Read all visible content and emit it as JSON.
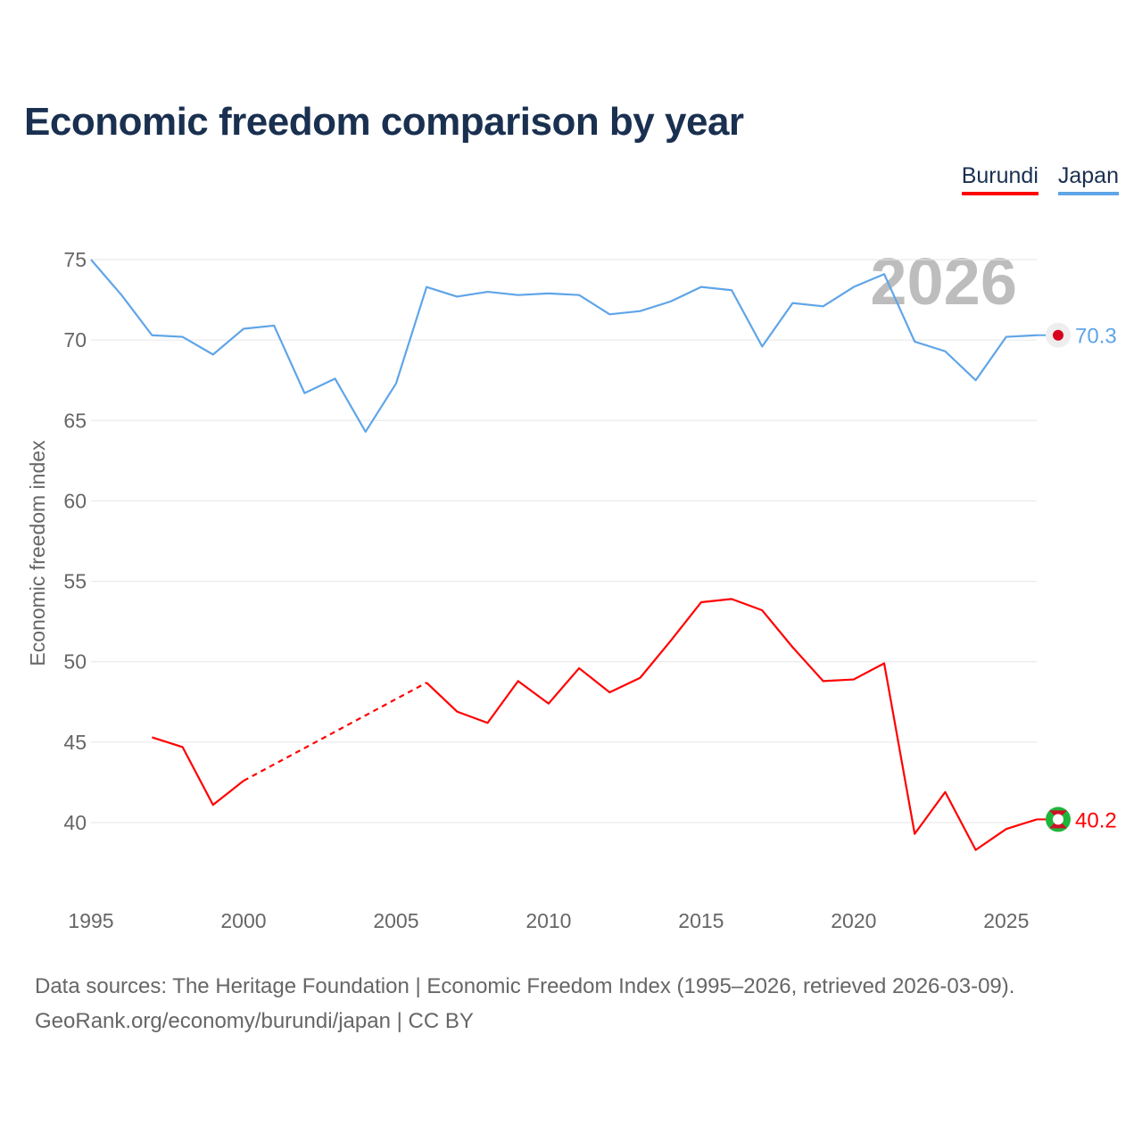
{
  "chart_data": {
    "type": "line",
    "title": "Economic freedom comparison by year",
    "xlabel": "",
    "ylabel": "Economic freedom index",
    "watermark_year": "2026",
    "x": [
      1995,
      1996,
      1997,
      1998,
      1999,
      2000,
      2001,
      2002,
      2003,
      2004,
      2005,
      2006,
      2007,
      2008,
      2009,
      2010,
      2011,
      2012,
      2013,
      2014,
      2015,
      2016,
      2017,
      2018,
      2019,
      2020,
      2021,
      2022,
      2023,
      2024,
      2025,
      2026
    ],
    "xlim": [
      1995,
      2026
    ],
    "ylim": [
      35,
      76
    ],
    "x_ticks": [
      "1995",
      "2000",
      "2005",
      "2010",
      "2015",
      "2020",
      "2025"
    ],
    "y_ticks": [
      "40",
      "45",
      "50",
      "55",
      "60",
      "65",
      "70",
      "75"
    ],
    "grid": true,
    "legend_position": "top-right",
    "series": [
      {
        "name": "Burundi",
        "color": "#ff0000",
        "end_label": "40.2",
        "values": [
          null,
          null,
          45.3,
          44.7,
          41.1,
          42.6,
          null,
          null,
          null,
          null,
          null,
          48.7,
          46.9,
          46.2,
          48.8,
          47.4,
          49.6,
          48.1,
          49.0,
          51.3,
          53.7,
          53.9,
          53.2,
          50.9,
          48.8,
          48.9,
          49.9,
          39.3,
          41.9,
          38.3,
          39.6,
          40.2
        ]
      },
      {
        "name": "Japan",
        "color": "#5fa5e8",
        "end_label": "70.3",
        "values": [
          75.0,
          72.8,
          70.3,
          70.2,
          69.1,
          70.7,
          70.9,
          66.7,
          67.6,
          64.3,
          67.3,
          73.3,
          72.7,
          73.0,
          72.8,
          72.9,
          72.8,
          71.6,
          71.8,
          72.4,
          73.3,
          73.1,
          69.6,
          72.3,
          72.1,
          73.3,
          74.1,
          69.9,
          69.3,
          67.5,
          70.2,
          70.3
        ]
      }
    ]
  },
  "footer": {
    "line1": "Data sources: The Heritage Foundation | Economic Freedom Index (1995–2026, retrieved 2026-03-09).",
    "line2": "GeoRank.org/economy/burundi/japan | CC BY"
  }
}
